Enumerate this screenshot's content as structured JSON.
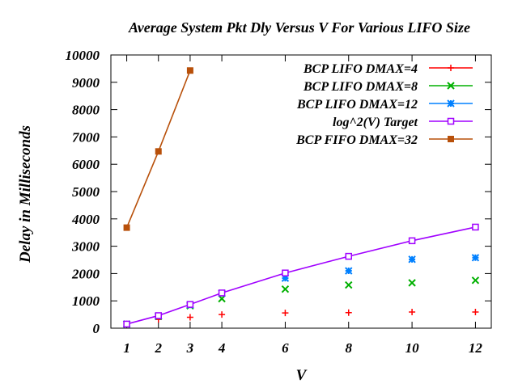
{
  "chart_data": {
    "type": "line",
    "title": "Average System Pkt Dly Versus V For Various LIFO Size",
    "xlabel": "V",
    "ylabel": "Delay in Milliseconds",
    "xlim": [
      0.5,
      12.5
    ],
    "ylim": [
      0,
      10000
    ],
    "xticks": [
      1,
      2,
      3,
      4,
      6,
      8,
      10,
      12
    ],
    "yticks": [
      0,
      1000,
      2000,
      3000,
      4000,
      5000,
      6000,
      7000,
      8000,
      9000,
      10000
    ],
    "legend_position": "top-right",
    "grid": false,
    "series": [
      {
        "name": "BCP LIFO DMAX=4",
        "color": "#ff0000",
        "marker": "plus",
        "line": false,
        "x": [
          1,
          2,
          3,
          4,
          6,
          8,
          10,
          12
        ],
        "y": [
          150,
          320,
          400,
          500,
          560,
          570,
          590,
          590
        ]
      },
      {
        "name": "BCP LIFO DMAX=8",
        "color": "#00b000",
        "marker": "cross",
        "line": false,
        "x": [
          1,
          2,
          3,
          4,
          6,
          8,
          10,
          12
        ],
        "y": [
          150,
          430,
          820,
          1080,
          1430,
          1580,
          1660,
          1750
        ]
      },
      {
        "name": "BCP LIFO DMAX=12",
        "color": "#0080ff",
        "marker": "star",
        "line": false,
        "x": [
          1,
          2,
          3,
          4,
          6,
          8,
          10,
          12
        ],
        "y": [
          150,
          450,
          850,
          1280,
          1830,
          2100,
          2520,
          2580
        ]
      },
      {
        "name": "log^2(V) Target",
        "color": "#a000ff",
        "marker": "square-open",
        "line": true,
        "x": [
          1,
          2,
          3,
          4,
          6,
          8,
          10,
          12
        ],
        "y": [
          150,
          460,
          870,
          1290,
          2020,
          2630,
          3200,
          3700
        ]
      },
      {
        "name": "BCP FIFO DMAX=32",
        "color": "#b8500a",
        "marker": "square-filled",
        "line": true,
        "x": [
          1,
          2,
          3
        ],
        "y": [
          3680,
          6470,
          9430
        ]
      }
    ]
  }
}
